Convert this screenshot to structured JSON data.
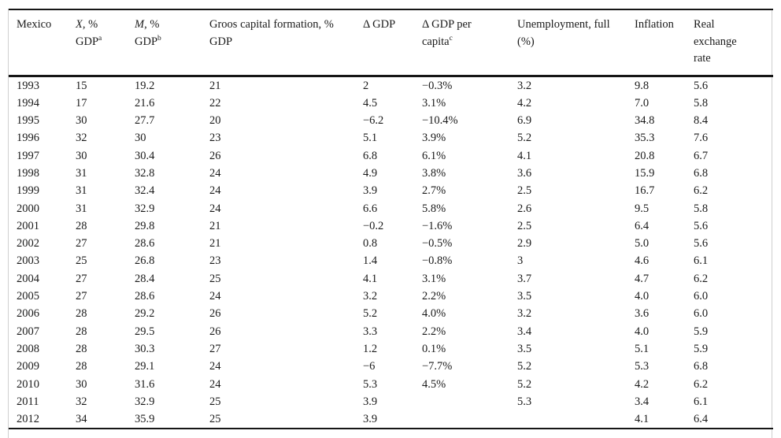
{
  "page": {
    "background": "#ffffff",
    "text_color": "#1a1a1a",
    "rule_color": "#161616",
    "faint_rule_color": "#cfcfcf"
  },
  "table": {
    "header": {
      "col1": {
        "line1": "Mexico"
      },
      "col2": {
        "symbol": "X",
        "after_symbol": ", %",
        "line2": "GDP",
        "sup": "a"
      },
      "col3": {
        "symbol": "M",
        "after_symbol": ", %",
        "line2": "GDP",
        "sup": "b"
      },
      "col4": {
        "line1": "Groos capital formation, %",
        "line2": "GDP"
      },
      "col5": {
        "line1": "Δ GDP"
      },
      "col6": {
        "line1": "Δ GDP per",
        "line2": "capita",
        "sup": "c"
      },
      "col7": {
        "line1": "Unemployment, full",
        "line2": "(%)"
      },
      "col8": {
        "line1": "Inflation"
      },
      "col9": {
        "line1": "Real",
        "line2": "exchange",
        "line3": "rate"
      }
    },
    "rows": [
      [
        "1993",
        "15",
        "19.2",
        "21",
        "2",
        "−0.3%",
        "3.2",
        "9.8",
        "5.6"
      ],
      [
        "1994",
        "17",
        "21.6",
        "22",
        "4.5",
        "3.1%",
        "4.2",
        "7.0",
        "5.8"
      ],
      [
        "1995",
        "30",
        "27.7",
        "20",
        "−6.2",
        "−10.4%",
        "6.9",
        "34.8",
        "8.4"
      ],
      [
        "1996",
        "32",
        "30",
        "23",
        "5.1",
        "3.9%",
        "5.2",
        "35.3",
        "7.6"
      ],
      [
        "1997",
        "30",
        "30.4",
        "26",
        "6.8",
        "6.1%",
        "4.1",
        "20.8",
        "6.7"
      ],
      [
        "1998",
        "31",
        "32.8",
        "24",
        "4.9",
        "3.8%",
        "3.6",
        "15.9",
        "6.8"
      ],
      [
        "1999",
        "31",
        "32.4",
        "24",
        "3.9",
        "2.7%",
        "2.5",
        "16.7",
        "6.2"
      ],
      [
        "2000",
        "31",
        "32.9",
        "24",
        "6.6",
        "5.8%",
        "2.6",
        "9.5",
        "5.8"
      ],
      [
        "2001",
        "28",
        "29.8",
        "21",
        "−0.2",
        "−1.6%",
        "2.5",
        "6.4",
        "5.6"
      ],
      [
        "2002",
        "27",
        "28.6",
        "21",
        "0.8",
        "−0.5%",
        "2.9",
        "5.0",
        "5.6"
      ],
      [
        "2003",
        "25",
        "26.8",
        "23",
        "1.4",
        "−0.8%",
        "3",
        "4.6",
        "6.1"
      ],
      [
        "2004",
        "27",
        "28.4",
        "25",
        "4.1",
        "3.1%",
        "3.7",
        "4.7",
        "6.2"
      ],
      [
        "2005",
        "27",
        "28.6",
        "24",
        "3.2",
        "2.2%",
        "3.5",
        "4.0",
        "6.0"
      ],
      [
        "2006",
        "28",
        "29.2",
        "26",
        "5.2",
        "4.0%",
        "3.2",
        "3.6",
        "6.0"
      ],
      [
        "2007",
        "28",
        "29.5",
        "26",
        "3.3",
        "2.2%",
        "3.4",
        "4.0",
        "5.9"
      ],
      [
        "2008",
        "28",
        "30.3",
        "27",
        "1.2",
        "0.1%",
        "3.5",
        "5.1",
        "5.9"
      ],
      [
        "2009",
        "28",
        "29.1",
        "24",
        "−6",
        "−7.7%",
        "5.2",
        "5.3",
        "6.8"
      ],
      [
        "2010",
        "30",
        "31.6",
        "24",
        "5.3",
        "4.5%",
        "5.2",
        "4.2",
        "6.2"
      ],
      [
        "2011",
        "32",
        "32.9",
        "25",
        "3.9",
        "",
        "5.3",
        "3.4",
        "6.1"
      ],
      [
        "2012",
        "34",
        "35.9",
        "25",
        "3.9",
        "",
        "",
        "4.1",
        "6.4"
      ]
    ]
  }
}
